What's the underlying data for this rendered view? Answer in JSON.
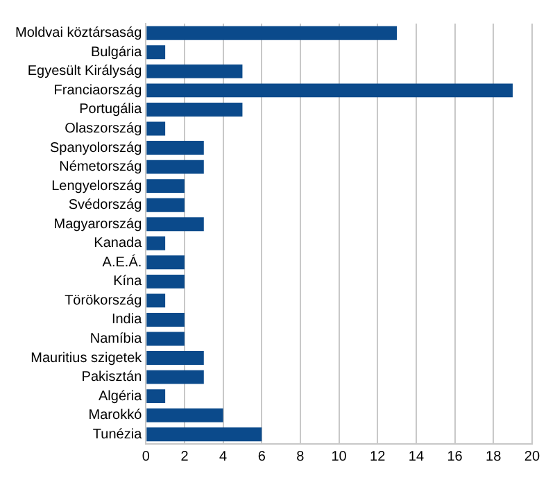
{
  "chart_data": {
    "type": "bar",
    "orientation": "horizontal",
    "categories": [
      "Moldvai köztársaság",
      "Bulgária",
      "Egyesült Királyság",
      "Franciaország",
      "Portugália",
      "Olaszország",
      "Spanyolország",
      "Németország",
      "Lengyelország",
      "Svédország",
      "Magyarország",
      "Kanada",
      "A.E.Á.",
      "Kína",
      "Törökország",
      "India",
      "Namíbia",
      "Mauritius szigetek",
      "Pakisztán",
      "Algéria",
      "Marokkó",
      "Tunézia"
    ],
    "values": [
      13,
      1,
      5,
      19,
      5,
      1,
      3,
      3,
      2,
      2,
      3,
      1,
      2,
      2,
      1,
      2,
      2,
      3,
      3,
      1,
      4,
      6
    ],
    "color": "#0b4a8b",
    "xlim": [
      0,
      20
    ],
    "xticks": [
      0,
      2,
      4,
      6,
      8,
      10,
      12,
      14,
      16,
      18,
      20
    ],
    "grid": "x"
  }
}
